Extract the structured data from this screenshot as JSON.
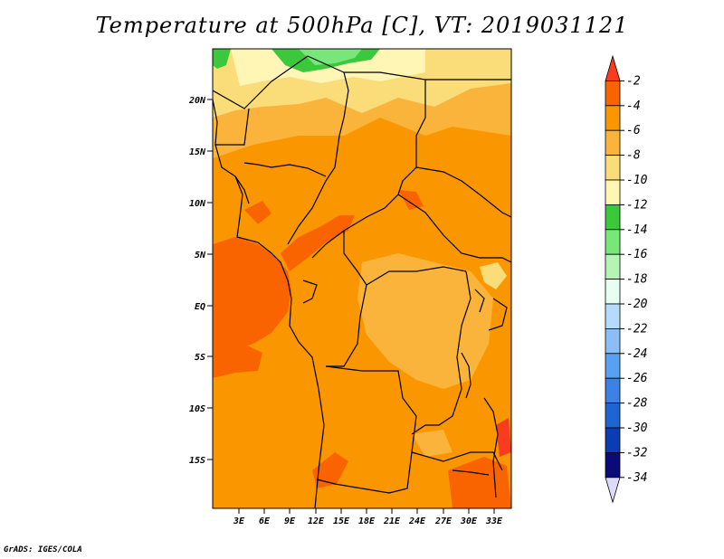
{
  "title": "Temperature at 500hPa [C], VT: 2019031121",
  "credit": "GrADS: IGES/COLA",
  "map": {
    "lon_labels": [
      "3E",
      "6E",
      "9E",
      "12E",
      "15E",
      "18E",
      "21E",
      "24E",
      "27E",
      "30E",
      "33E"
    ],
    "lat_labels": [
      "20N",
      "15N",
      "10N",
      "5N",
      "EQ",
      "5S",
      "10S",
      "15S"
    ]
  },
  "colorbar": {
    "labels": [
      "-2",
      "-4",
      "-6",
      "-8",
      "-10",
      "-12",
      "-14",
      "-16",
      "-18",
      "-20",
      "-22",
      "-24",
      "-26",
      "-28",
      "-30",
      "-32",
      "-34"
    ],
    "colors": [
      "#fa3c1e",
      "#fa6400",
      "#fa9600",
      "#fab43c",
      "#fadc78",
      "#fff5b4",
      "#3cc83c",
      "#78e678",
      "#b4f5b4",
      "#e6fff0",
      "#b4dcfa",
      "#8cbef5",
      "#5aa0f0",
      "#3c82e6",
      "#1e64d2",
      "#0a3cb4",
      "#0a0a78",
      "#dcdcfa"
    ]
  }
}
